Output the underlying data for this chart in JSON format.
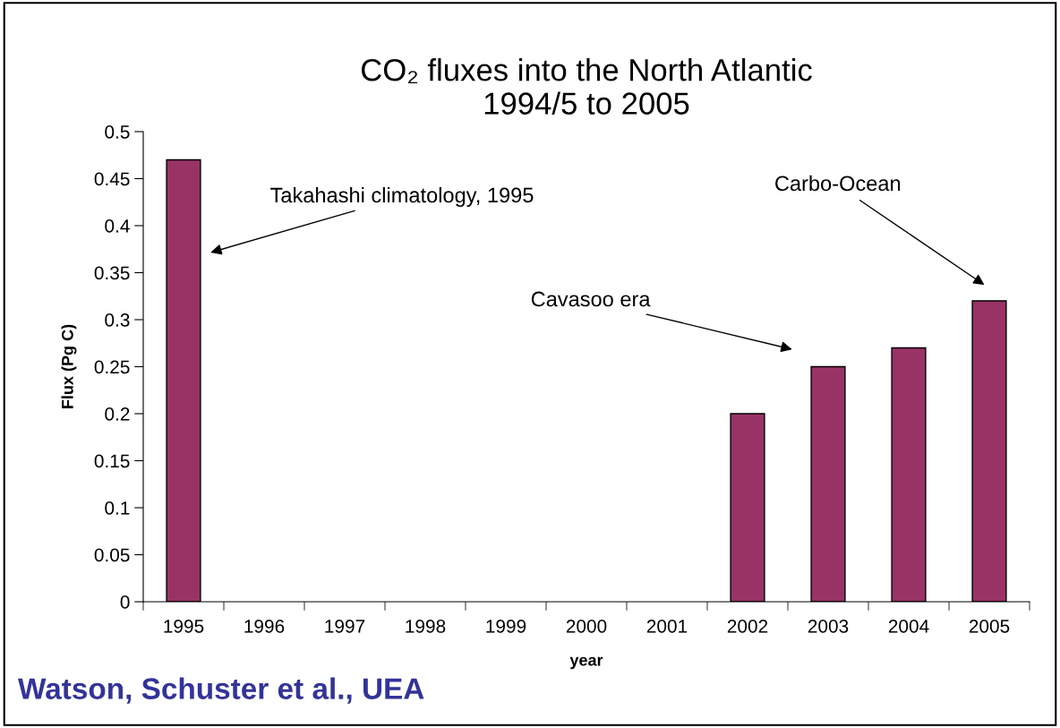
{
  "chart_data": {
    "type": "bar",
    "title": "CO₂ fluxes into the North Atlantic\n1994/5 to 2005",
    "xlabel": "year",
    "ylabel": "Flux (Pg C)",
    "categories": [
      "1995",
      "1996",
      "1997",
      "1998",
      "1999",
      "2000",
      "2001",
      "2002",
      "2003",
      "2004",
      "2005"
    ],
    "values": [
      0.47,
      null,
      null,
      null,
      null,
      null,
      null,
      0.2,
      0.25,
      0.27,
      0.32
    ],
    "color": "#993366",
    "ylim": [
      0,
      0.5
    ],
    "yticks": [
      0,
      0.05,
      0.1,
      0.15,
      0.2,
      0.25,
      0.3,
      0.35,
      0.4,
      0.45,
      0.5
    ],
    "grid": false,
    "annotations": [
      "Takahashi climatology, 1995",
      "Cavasoo era",
      "Carbo-Ocean",
      "Watson, Schuster et al., UEA"
    ]
  }
}
